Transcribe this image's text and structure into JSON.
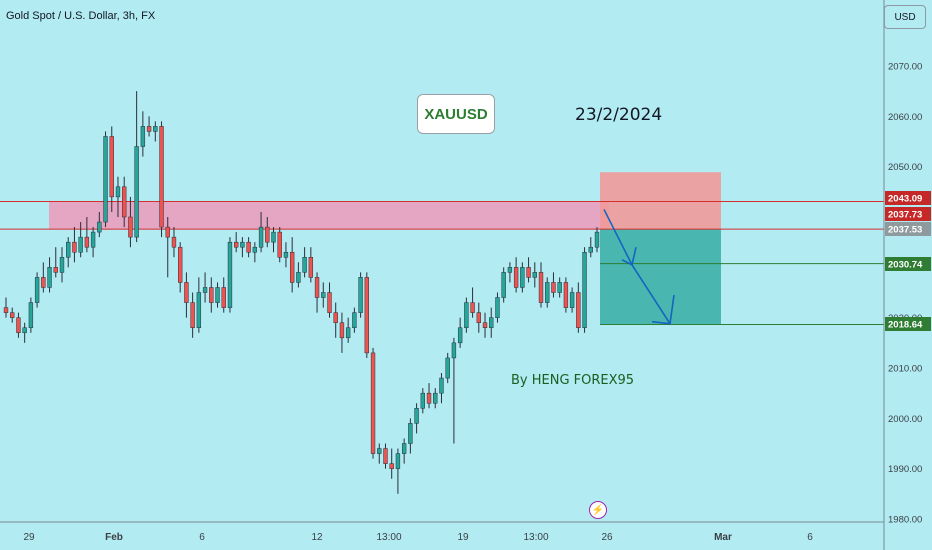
{
  "header": {
    "symbol_title": "Gold Spot / U.S. Dollar, 3h, FX",
    "currency_button": "USD"
  },
  "annotations": {
    "symbol_box": "XAUUSD",
    "date_text": "23/2/2024",
    "author_text": "By HENG FOREX95",
    "lightning_icon": "⚡"
  },
  "colors": {
    "background": "#b2ebf2",
    "up_candle": "#26a69a",
    "down_candle": "#ef5350",
    "wick": "#2a2e39",
    "resistance_zone": "#f48fb1",
    "resistance_line": "#d32f2f",
    "tp_line": "#2e7d32",
    "profit_zone": "#26a69a",
    "loss_zone": "#ef9a9a",
    "arrow": "#1565c0"
  },
  "chart_data": {
    "type": "candlestick",
    "title": "Gold Spot / U.S. Dollar, 3h, FX",
    "ylim": [
      1980,
      2090
    ],
    "y_ticks": [
      1980,
      1990,
      2000,
      2010,
      2020,
      2030,
      2040,
      2050,
      2060,
      2070
    ],
    "x_ticks": [
      "29",
      "Feb",
      "6",
      "12",
      "13:00",
      "19",
      "13:00",
      "26",
      "Mar",
      "6"
    ],
    "grid": false,
    "price_labels": [
      {
        "value": 2043.09,
        "label": "2043.09",
        "kind": "resistance"
      },
      {
        "value": 2037.73,
        "label": "2037.73",
        "kind": "current"
      },
      {
        "value": 2037.53,
        "label": "2037.53",
        "kind": "entry"
      },
      {
        "value": 2030.74,
        "label": "2030.74",
        "kind": "target"
      },
      {
        "value": 2018.64,
        "label": "2018.64",
        "kind": "target"
      }
    ],
    "resistance_zone": {
      "from": 2037.5,
      "to": 2043.1
    },
    "short_position": {
      "entry": 2037.53,
      "stop": 2048.9,
      "target": 2018.64
    },
    "candles": [
      {
        "o": 2022,
        "h": 2024,
        "l": 2020,
        "c": 2021
      },
      {
        "o": 2021,
        "h": 2022,
        "l": 2019,
        "c": 2020
      },
      {
        "o": 2020,
        "h": 2021,
        "l": 2016,
        "c": 2017
      },
      {
        "o": 2017,
        "h": 2019,
        "l": 2015,
        "c": 2018
      },
      {
        "o": 2018,
        "h": 2024,
        "l": 2017,
        "c": 2023
      },
      {
        "o": 2023,
        "h": 2029,
        "l": 2022,
        "c": 2028
      },
      {
        "o": 2028,
        "h": 2031,
        "l": 2025,
        "c": 2026
      },
      {
        "o": 2026,
        "h": 2032,
        "l": 2025,
        "c": 2030
      },
      {
        "o": 2030,
        "h": 2034,
        "l": 2028,
        "c": 2029
      },
      {
        "o": 2029,
        "h": 2034,
        "l": 2027,
        "c": 2032
      },
      {
        "o": 2032,
        "h": 2036,
        "l": 2030,
        "c": 2035
      },
      {
        "o": 2035,
        "h": 2038,
        "l": 2031,
        "c": 2033
      },
      {
        "o": 2033,
        "h": 2039,
        "l": 2032,
        "c": 2036
      },
      {
        "o": 2036,
        "h": 2040,
        "l": 2033,
        "c": 2034
      },
      {
        "o": 2034,
        "h": 2038,
        "l": 2032,
        "c": 2037
      },
      {
        "o": 2037,
        "h": 2041,
        "l": 2036,
        "c": 2039
      },
      {
        "o": 2039,
        "h": 2057,
        "l": 2038,
        "c": 2056
      },
      {
        "o": 2056,
        "h": 2058,
        "l": 2041,
        "c": 2044
      },
      {
        "o": 2044,
        "h": 2048,
        "l": 2040,
        "c": 2046
      },
      {
        "o": 2046,
        "h": 2048,
        "l": 2038,
        "c": 2040
      },
      {
        "o": 2040,
        "h": 2044,
        "l": 2034,
        "c": 2036
      },
      {
        "o": 2036,
        "h": 2065,
        "l": 2035,
        "c": 2054
      },
      {
        "o": 2054,
        "h": 2061,
        "l": 2052,
        "c": 2058
      },
      {
        "o": 2058,
        "h": 2060,
        "l": 2056,
        "c": 2057
      },
      {
        "o": 2057,
        "h": 2059,
        "l": 2055,
        "c": 2058
      },
      {
        "o": 2058,
        "h": 2059,
        "l": 2036,
        "c": 2038
      },
      {
        "o": 2038,
        "h": 2040,
        "l": 2028,
        "c": 2036
      },
      {
        "o": 2036,
        "h": 2038,
        "l": 2032,
        "c": 2034
      },
      {
        "o": 2034,
        "h": 2035,
        "l": 2025,
        "c": 2027
      },
      {
        "o": 2027,
        "h": 2029,
        "l": 2020,
        "c": 2023
      },
      {
        "o": 2023,
        "h": 2025,
        "l": 2016,
        "c": 2018
      },
      {
        "o": 2018,
        "h": 2028,
        "l": 2017,
        "c": 2025
      },
      {
        "o": 2025,
        "h": 2029,
        "l": 2023,
        "c": 2026
      },
      {
        "o": 2026,
        "h": 2028,
        "l": 2021,
        "c": 2023
      },
      {
        "o": 2023,
        "h": 2027,
        "l": 2022,
        "c": 2026
      },
      {
        "o": 2026,
        "h": 2028,
        "l": 2021,
        "c": 2022
      },
      {
        "o": 2022,
        "h": 2036,
        "l": 2021,
        "c": 2035
      },
      {
        "o": 2035,
        "h": 2037,
        "l": 2033,
        "c": 2034
      },
      {
        "o": 2034,
        "h": 2036,
        "l": 2032,
        "c": 2035
      },
      {
        "o": 2035,
        "h": 2036,
        "l": 2032,
        "c": 2033
      },
      {
        "o": 2033,
        "h": 2035,
        "l": 2031,
        "c": 2034
      },
      {
        "o": 2034,
        "h": 2041,
        "l": 2033,
        "c": 2038
      },
      {
        "o": 2038,
        "h": 2040,
        "l": 2034,
        "c": 2035
      },
      {
        "o": 2035,
        "h": 2038,
        "l": 2033,
        "c": 2037
      },
      {
        "o": 2037,
        "h": 2038,
        "l": 2031,
        "c": 2032
      },
      {
        "o": 2032,
        "h": 2035,
        "l": 2030,
        "c": 2033
      },
      {
        "o": 2033,
        "h": 2036,
        "l": 2025,
        "c": 2027
      },
      {
        "o": 2027,
        "h": 2031,
        "l": 2026,
        "c": 2029
      },
      {
        "o": 2029,
        "h": 2034,
        "l": 2028,
        "c": 2032
      },
      {
        "o": 2032,
        "h": 2034,
        "l": 2027,
        "c": 2028
      },
      {
        "o": 2028,
        "h": 2029,
        "l": 2021,
        "c": 2024
      },
      {
        "o": 2024,
        "h": 2027,
        "l": 2022,
        "c": 2025
      },
      {
        "o": 2025,
        "h": 2027,
        "l": 2020,
        "c": 2021
      },
      {
        "o": 2021,
        "h": 2023,
        "l": 2016,
        "c": 2019
      },
      {
        "o": 2019,
        "h": 2021,
        "l": 2013,
        "c": 2016
      },
      {
        "o": 2016,
        "h": 2020,
        "l": 2015,
        "c": 2018
      },
      {
        "o": 2018,
        "h": 2022,
        "l": 2017,
        "c": 2021
      },
      {
        "o": 2021,
        "h": 2029,
        "l": 2020,
        "c": 2028
      },
      {
        "o": 2028,
        "h": 2029,
        "l": 2012,
        "c": 2013
      },
      {
        "o": 2013,
        "h": 2014,
        "l": 1992,
        "c": 1993
      },
      {
        "o": 1993,
        "h": 1995,
        "l": 1991,
        "c": 1994
      },
      {
        "o": 1994,
        "h": 1995,
        "l": 1990,
        "c": 1991
      },
      {
        "o": 1991,
        "h": 1994,
        "l": 1988,
        "c": 1990
      },
      {
        "o": 1990,
        "h": 1994,
        "l": 1985,
        "c": 1993
      },
      {
        "o": 1993,
        "h": 1996,
        "l": 1991,
        "c": 1995
      },
      {
        "o": 1995,
        "h": 2000,
        "l": 1993,
        "c": 1999
      },
      {
        "o": 1999,
        "h": 2003,
        "l": 1997,
        "c": 2002
      },
      {
        "o": 2002,
        "h": 2006,
        "l": 2001,
        "c": 2005
      },
      {
        "o": 2005,
        "h": 2007,
        "l": 2002,
        "c": 2003
      },
      {
        "o": 2003,
        "h": 2006,
        "l": 2002,
        "c": 2005
      },
      {
        "o": 2005,
        "h": 2009,
        "l": 2003,
        "c": 2008
      },
      {
        "o": 2008,
        "h": 2013,
        "l": 2007,
        "c": 2012
      },
      {
        "o": 2012,
        "h": 2016,
        "l": 1995,
        "c": 2015
      },
      {
        "o": 2015,
        "h": 2020,
        "l": 2014,
        "c": 2018
      },
      {
        "o": 2018,
        "h": 2024,
        "l": 2017,
        "c": 2023
      },
      {
        "o": 2023,
        "h": 2026,
        "l": 2020,
        "c": 2021
      },
      {
        "o": 2021,
        "h": 2023,
        "l": 2017,
        "c": 2019
      },
      {
        "o": 2019,
        "h": 2021,
        "l": 2016,
        "c": 2018
      },
      {
        "o": 2018,
        "h": 2022,
        "l": 2016,
        "c": 2020
      },
      {
        "o": 2020,
        "h": 2025,
        "l": 2019,
        "c": 2024
      },
      {
        "o": 2024,
        "h": 2030,
        "l": 2023,
        "c": 2029
      },
      {
        "o": 2029,
        "h": 2031,
        "l": 2027,
        "c": 2030
      },
      {
        "o": 2030,
        "h": 2032,
        "l": 2025,
        "c": 2026
      },
      {
        "o": 2026,
        "h": 2031,
        "l": 2025,
        "c": 2030
      },
      {
        "o": 2030,
        "h": 2032,
        "l": 2027,
        "c": 2028
      },
      {
        "o": 2028,
        "h": 2031,
        "l": 2026,
        "c": 2029
      },
      {
        "o": 2029,
        "h": 2031,
        "l": 2022,
        "c": 2023
      },
      {
        "o": 2023,
        "h": 2028,
        "l": 2022,
        "c": 2027
      },
      {
        "o": 2027,
        "h": 2029,
        "l": 2024,
        "c": 2025
      },
      {
        "o": 2025,
        "h": 2028,
        "l": 2024,
        "c": 2027
      },
      {
        "o": 2027,
        "h": 2028,
        "l": 2021,
        "c": 2022
      },
      {
        "o": 2022,
        "h": 2026,
        "l": 2021,
        "c": 2025
      },
      {
        "o": 2025,
        "h": 2027,
        "l": 2017,
        "c": 2018
      },
      {
        "o": 2018,
        "h": 2034,
        "l": 2017,
        "c": 2033
      },
      {
        "o": 2033,
        "h": 2036,
        "l": 2032,
        "c": 2034
      },
      {
        "o": 2034,
        "h": 2038,
        "l": 2033,
        "c": 2037
      }
    ]
  }
}
